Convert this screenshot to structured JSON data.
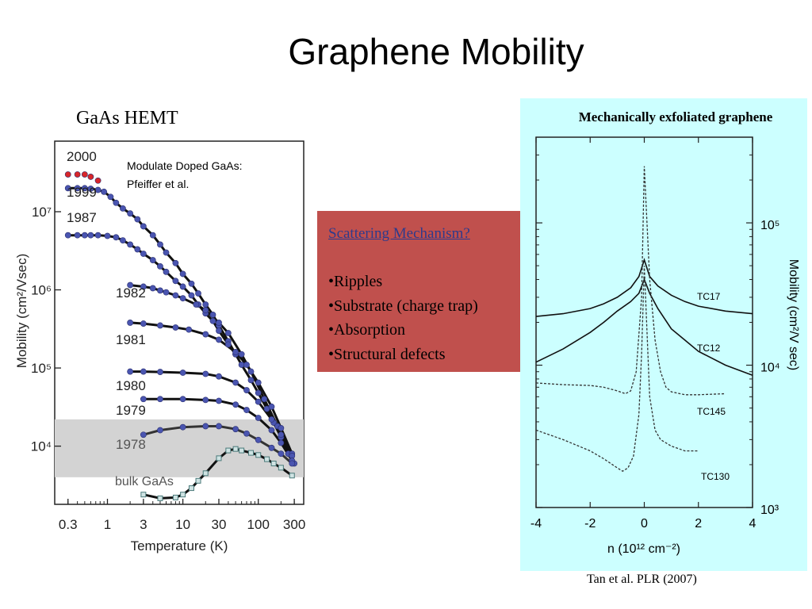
{
  "slide": {
    "title": "Graphene Mobility",
    "gaas_label": "GaAs HEMT",
    "citation": "Tan et al. PLR (2007)"
  },
  "note": {
    "heading": "Scattering Mechanism?",
    "bullets": [
      "•Ripples",
      "•Substrate (charge trap)",
      "•Absorption",
      "•Structural defects"
    ]
  },
  "colors": {
    "note_box": "#c0504d",
    "panel": "#ccffff",
    "band": "#d3d3d3",
    "series_blue": "#4a55b0",
    "series_red": "#d8262a"
  },
  "chart_data": [
    {
      "type": "line",
      "title": "",
      "annotation": "Modulate Doped GaAs: Pfeiffer et al.",
      "xlabel": "Temperature (K)",
      "ylabel": "Mobility (cm²/Vsec)",
      "xscale": "log",
      "yscale": "log",
      "xlim": [
        0.2,
        400
      ],
      "ylim": [
        1800,
        80000000
      ],
      "x_ticks": [
        "0.3",
        "1",
        "3",
        "10",
        "30",
        "100",
        "300"
      ],
      "y_ticks": [
        "10⁴",
        "10⁵",
        "10⁶",
        "10⁷"
      ],
      "shaded_band": [
        4000,
        22000
      ],
      "series": [
        {
          "name": "2000",
          "color": "#d8262a",
          "x": [
            0.3,
            0.4,
            0.5,
            0.6,
            0.75
          ],
          "y": [
            30000000,
            30000000,
            30000000,
            28000000,
            25000000
          ]
        },
        {
          "name": "1999",
          "color": "#4a55b0",
          "x": [
            0.3,
            0.4,
            0.5,
            0.6,
            0.75,
            0.9,
            1.1,
            1.3,
            1.6,
            2,
            2.5,
            3,
            4,
            5,
            6,
            8,
            10,
            13,
            16,
            20,
            25,
            30,
            40,
            50,
            60,
            80,
            100,
            130,
            160,
            200,
            250,
            300
          ],
          "y": [
            20000000,
            20000000,
            20000000,
            19700000,
            19000000,
            18000000,
            15500000,
            13000000,
            11000000,
            9500000,
            8000000,
            6500000,
            5000000,
            3800000,
            3000000,
            2200000,
            1600000,
            1200000,
            900000,
            650000,
            480000,
            350000,
            220000,
            150000,
            110000,
            70000,
            48000,
            30000,
            20000,
            13000,
            8000,
            6000
          ]
        },
        {
          "name": "1987",
          "color": "#4a55b0",
          "x": [
            0.3,
            0.4,
            0.5,
            0.6,
            0.75,
            1,
            1.3,
            1.6,
            2,
            2.5,
            3,
            4,
            5,
            6,
            8,
            10,
            13,
            16,
            20,
            25,
            30,
            40,
            50
          ],
          "y": [
            5000000,
            5000000,
            5000000,
            5000000,
            5000000,
            4900000,
            4700000,
            4300000,
            3800000,
            3300000,
            2900000,
            2400000,
            2000000,
            1700000,
            1300000,
            1100000,
            850000,
            650000,
            500000,
            400000,
            300000,
            200000,
            150000
          ]
        },
        {
          "name": "1982",
          "color": "#4a55b0",
          "x": [
            2,
            3,
            4,
            5,
            6,
            8,
            10,
            15,
            20,
            30,
            40,
            60,
            80,
            120,
            180,
            250
          ],
          "y": [
            1150000,
            1100000,
            1050000,
            980000,
            930000,
            850000,
            780000,
            650000,
            550000,
            380000,
            280000,
            150000,
            90000,
            40000,
            18000,
            8000
          ]
        },
        {
          "name": "1981",
          "color": "#4a55b0",
          "x": [
            2,
            3,
            5,
            8,
            12,
            20,
            30,
            50,
            70,
            100,
            150,
            200,
            280
          ],
          "y": [
            380000,
            370000,
            350000,
            330000,
            310000,
            270000,
            230000,
            160000,
            110000,
            65000,
            32000,
            17000,
            8000
          ]
        },
        {
          "name": "1980",
          "color": "#4a55b0",
          "x": [
            2,
            3,
            5,
            10,
            20,
            30,
            50,
            70,
            100,
            150,
            200,
            280
          ],
          "y": [
            90000,
            90000,
            89000,
            87000,
            84000,
            78000,
            65000,
            52000,
            37000,
            22000,
            14000,
            7500
          ]
        },
        {
          "name": "1979",
          "color": "#4a55b0",
          "x": [
            3,
            5,
            10,
            20,
            30,
            50,
            70,
            100,
            150,
            200,
            280
          ],
          "y": [
            40000,
            40000,
            40000,
            39000,
            38000,
            34000,
            29000,
            23000,
            16000,
            11000,
            6500
          ]
        },
        {
          "name": "1978",
          "color": "#4a55b0",
          "x": [
            3,
            5,
            10,
            20,
            30,
            50,
            70,
            100,
            150,
            200,
            280
          ],
          "y": [
            14000,
            16000,
            17500,
            18000,
            18000,
            16500,
            14500,
            12000,
            9500,
            8000,
            6000
          ]
        },
        {
          "name": "bulk GaAs",
          "color": "#7ab0b0",
          "x": [
            3,
            5,
            8,
            10,
            13,
            16,
            20,
            30,
            40,
            50,
            60,
            80,
            100,
            130,
            160,
            200,
            280
          ],
          "y": [
            2400,
            2150,
            2200,
            2400,
            2900,
            3600,
            4500,
            7000,
            8800,
            9200,
            8800,
            8200,
            7700,
            6800,
            6000,
            5300,
            4200
          ]
        }
      ]
    },
    {
      "type": "line",
      "title": "Mechanically exfoliated graphene",
      "xlabel": "n (10¹² cm⁻²)",
      "ylabel": "Mobility (cm²/V sec)",
      "xlim": [
        -4,
        4
      ],
      "ylim": [
        1000,
        400000
      ],
      "yscale": "log",
      "x_ticks": [
        "-4",
        "-2",
        "0",
        "2",
        "4"
      ],
      "y_ticks": [
        "10³",
        "10⁴",
        "10⁵"
      ],
      "series": [
        {
          "name": "TC17",
          "x": [
            -4,
            -3,
            -2,
            -1.5,
            -1,
            -0.5,
            -0.2,
            0,
            0.2,
            0.5,
            1,
            1.5,
            2,
            3,
            4
          ],
          "y": [
            22000,
            23000,
            25000,
            27000,
            30000,
            35000,
            42000,
            55000,
            42000,
            36000,
            31000,
            28000,
            26000,
            24000,
            23000
          ]
        },
        {
          "name": "TC12",
          "x": [
            -4,
            -3,
            -2,
            -1.5,
            -1,
            -0.5,
            -0.2,
            0,
            0.2,
            0.5,
            1,
            1.5,
            2,
            3,
            4
          ],
          "y": [
            10500,
            13000,
            17000,
            20000,
            24000,
            28000,
            32000,
            40000,
            32000,
            25000,
            18000,
            15000,
            12500,
            10000,
            8500
          ]
        },
        {
          "name": "TC145",
          "x": [
            -4,
            -3,
            -2,
            -1.5,
            -1,
            -0.7,
            -0.5,
            -0.3,
            -0.1,
            0,
            0.2,
            0.4,
            0.6,
            0.8,
            1,
            1.5,
            2,
            3
          ],
          "y": [
            7500,
            7300,
            7200,
            7000,
            6600,
            6300,
            6600,
            9000,
            30000,
            250000,
            40000,
            15000,
            9000,
            7000,
            6500,
            6200,
            6200,
            6300
          ]
        },
        {
          "name": "TC130",
          "x": [
            -4,
            -3,
            -2,
            -1.5,
            -1,
            -0.8,
            -0.6,
            -0.4,
            -0.2,
            -0.1,
            0,
            0.2,
            0.4,
            0.6,
            1,
            1.5,
            2
          ],
          "y": [
            3500,
            3000,
            2500,
            2200,
            1900,
            1800,
            1900,
            2300,
            4500,
            12000,
            50000,
            6000,
            3500,
            3000,
            2700,
            2500,
            2500
          ]
        }
      ]
    }
  ]
}
